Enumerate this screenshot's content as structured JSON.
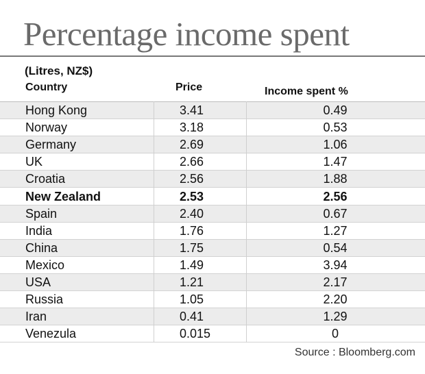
{
  "chart_data": {
    "type": "table",
    "title": "Percentage income spent",
    "subtitle": "(Litres, NZ$)",
    "columns": [
      "Country",
      "Price",
      "Income spent %"
    ],
    "rows": [
      {
        "country": "Hong Kong",
        "price": "3.41",
        "income": "0.49",
        "bold": false
      },
      {
        "country": "Norway",
        "price": "3.18",
        "income": "0.53",
        "bold": false
      },
      {
        "country": "Germany",
        "price": "2.69",
        "income": "1.06",
        "bold": false
      },
      {
        "country": "UK",
        "price": "2.66",
        "income": "1.47",
        "bold": false
      },
      {
        "country": "Croatia",
        "price": "2.56",
        "income": "1.88",
        "bold": false
      },
      {
        "country": "New Zealand",
        "price": "2.53",
        "income": "2.56",
        "bold": true
      },
      {
        "country": "Spain",
        "price": "2.40",
        "income": "0.67",
        "bold": false
      },
      {
        "country": "India",
        "price": "1.76",
        "income": "1.27",
        "bold": false
      },
      {
        "country": "China",
        "price": "1.75",
        "income": "0.54",
        "bold": false
      },
      {
        "country": "Mexico",
        "price": "1.49",
        "income": "3.94",
        "bold": false
      },
      {
        "country": "USA",
        "price": "1.21",
        "income": "2.17",
        "bold": false
      },
      {
        "country": "Russia",
        "price": "1.05",
        "income": "2.20",
        "bold": false
      },
      {
        "country": "Iran",
        "price": "0.41",
        "income": "1.29",
        "bold": false
      },
      {
        "country": "Venezula",
        "price": "0.015",
        "income": "0",
        "bold": false
      }
    ],
    "source": "Source : Bloomberg.com"
  },
  "colors": {
    "title": "#6a6a6a",
    "row_shade": "#ececec",
    "rule": "#777777"
  }
}
